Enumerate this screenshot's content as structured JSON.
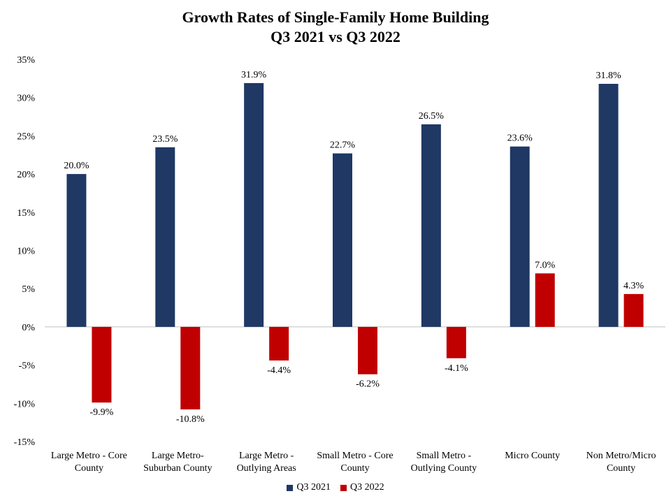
{
  "chart_data": {
    "type": "bar",
    "title": "Growth Rates of Single-Family Home Building",
    "subtitle": "Q3 2021 vs Q3 2022",
    "categories": [
      [
        "Large Metro - Core",
        "County"
      ],
      [
        "Large Metro-",
        "Suburban County"
      ],
      [
        "Large Metro -",
        "Outlying Areas"
      ],
      [
        "Small Metro - Core",
        "County"
      ],
      [
        "Small Metro -",
        "Outlying County"
      ],
      [
        "Micro County"
      ],
      [
        "Non Metro/Micro",
        "County"
      ]
    ],
    "series": [
      {
        "name": "Q3 2021",
        "color": "#1f3864",
        "values": [
          20.0,
          23.5,
          31.9,
          22.7,
          26.5,
          23.6,
          31.8
        ],
        "labels": [
          "20.0%",
          "23.5%",
          "31.9%",
          "22.7%",
          "26.5%",
          "23.6%",
          "31.8%"
        ]
      },
      {
        "name": "Q3 2022",
        "color": "#c00000",
        "values": [
          -9.9,
          -10.8,
          -4.4,
          -6.2,
          -4.1,
          7.0,
          4.3
        ],
        "labels": [
          "-9.9%",
          "-10.8%",
          "-4.4%",
          "-6.2%",
          "-4.1%",
          "7.0%",
          "4.3%"
        ]
      }
    ],
    "ylim": [
      -15,
      35
    ],
    "yticks": [
      35,
      30,
      25,
      20,
      15,
      10,
      5,
      0,
      -5,
      -10,
      -15
    ],
    "ytick_labels": [
      "35%",
      "30%",
      "25%",
      "20%",
      "15%",
      "10%",
      "5%",
      "0%",
      "-5%",
      "-10%",
      "-15%"
    ],
    "grid": false,
    "legend": "bottom-center"
  }
}
